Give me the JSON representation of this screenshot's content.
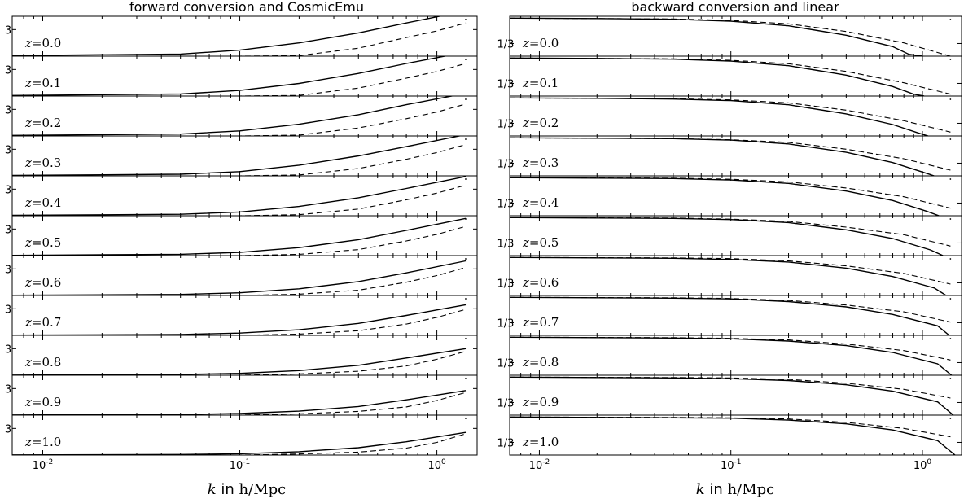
{
  "chart_data": [
    {
      "type": "line",
      "title": "forward conversion and CosmicEmu",
      "xlabel_italic": "k",
      "xlabel_mid": " in ",
      "xlabel_unit": "h/Mpc",
      "xscale": "log",
      "xlim": [
        0.007,
        1.6
      ],
      "xticks": [
        {
          "value": 0.01,
          "base": "10",
          "exp": "-2"
        },
        {
          "value": 0.1,
          "base": "10",
          "exp": "-1"
        },
        {
          "value": 1,
          "base": "10",
          "exp": "0"
        }
      ],
      "ytick_label": "3",
      "ylim": [
        1,
        4
      ],
      "ytick_value": 3,
      "grid": false,
      "panel_label_var": "z",
      "panels": [
        {
          "z_label": "=0.0",
          "ref_x": 1.4,
          "solid_x": [
            0.007,
            0.05,
            0.1,
            0.2,
            0.4,
            0.7,
            1.4
          ],
          "solid_y": [
            1.04,
            1.16,
            1.45,
            2.0,
            2.75,
            3.5,
            4.4
          ],
          "dashed_x": [
            0.007,
            0.1,
            0.2,
            0.4,
            0.7,
            1.0,
            1.4
          ],
          "dashed_y": [
            1.0,
            1.0,
            1.04,
            1.6,
            2.4,
            2.9,
            3.5
          ]
        },
        {
          "z_label": "=0.1",
          "ref_x": 1.4,
          "solid_x": [
            0.007,
            0.05,
            0.1,
            0.2,
            0.4,
            0.7,
            1.4
          ],
          "solid_y": [
            1.04,
            1.15,
            1.42,
            1.95,
            2.7,
            3.45,
            4.3
          ],
          "dashed_x": [
            0.007,
            0.1,
            0.2,
            0.4,
            0.7,
            1.0,
            1.4
          ],
          "dashed_y": [
            1.0,
            1.0,
            1.05,
            1.6,
            2.35,
            2.85,
            3.45
          ]
        },
        {
          "z_label": "=0.2",
          "ref_x": 1.4,
          "solid_x": [
            0.007,
            0.05,
            0.1,
            0.2,
            0.4,
            0.7,
            1.4
          ],
          "solid_y": [
            1.04,
            1.14,
            1.38,
            1.88,
            2.6,
            3.35,
            4.2
          ],
          "dashed_x": [
            0.007,
            0.1,
            0.2,
            0.4,
            0.7,
            1.0,
            1.4
          ],
          "dashed_y": [
            1.0,
            1.0,
            1.06,
            1.6,
            2.3,
            2.8,
            3.4
          ]
        },
        {
          "z_label": "=0.3",
          "ref_x": 1.4,
          "solid_x": [
            0.007,
            0.05,
            0.1,
            0.2,
            0.4,
            0.7,
            1.4
          ],
          "solid_y": [
            1.03,
            1.12,
            1.32,
            1.8,
            2.5,
            3.2,
            4.1
          ],
          "dashed_x": [
            0.007,
            0.1,
            0.2,
            0.4,
            0.7,
            1.0,
            1.4
          ],
          "dashed_y": [
            1.0,
            1.0,
            1.07,
            1.55,
            2.25,
            2.75,
            3.35
          ]
        },
        {
          "z_label": "=0.4",
          "ref_x": 1.4,
          "solid_x": [
            0.007,
            0.05,
            0.1,
            0.2,
            0.4,
            0.7,
            1.4
          ],
          "solid_y": [
            1.03,
            1.11,
            1.28,
            1.7,
            2.35,
            3.05,
            3.95
          ],
          "dashed_x": [
            0.007,
            0.1,
            0.2,
            0.4,
            0.7,
            1.0,
            1.4
          ],
          "dashed_y": [
            1.0,
            1.0,
            1.08,
            1.5,
            2.2,
            2.7,
            3.3
          ]
        },
        {
          "z_label": "=0.5",
          "ref_x": 1.4,
          "solid_x": [
            0.007,
            0.05,
            0.1,
            0.2,
            0.4,
            0.7,
            1.4
          ],
          "solid_y": [
            1.02,
            1.1,
            1.24,
            1.6,
            2.2,
            2.9,
            3.8
          ],
          "dashed_x": [
            0.007,
            0.1,
            0.2,
            0.4,
            0.7,
            1.0,
            1.4
          ],
          "dashed_y": [
            1.0,
            1.0,
            1.09,
            1.45,
            2.1,
            2.6,
            3.2
          ]
        },
        {
          "z_label": "=0.6",
          "ref_x": 1.4,
          "solid_x": [
            0.007,
            0.05,
            0.1,
            0.2,
            0.4,
            0.7,
            1.4
          ],
          "solid_y": [
            1.02,
            1.08,
            1.2,
            1.5,
            2.05,
            2.7,
            3.6
          ],
          "dashed_x": [
            0.007,
            0.1,
            0.2,
            0.4,
            0.7,
            1.0,
            1.4
          ],
          "dashed_y": [
            1.0,
            1.0,
            1.1,
            1.4,
            2.0,
            2.5,
            3.1
          ]
        },
        {
          "z_label": "=0.7",
          "ref_x": 1.4,
          "solid_x": [
            0.007,
            0.05,
            0.1,
            0.2,
            0.4,
            0.7,
            1.4
          ],
          "solid_y": [
            1.02,
            1.07,
            1.17,
            1.42,
            1.9,
            2.5,
            3.3
          ],
          "dashed_x": [
            0.007,
            0.1,
            0.2,
            0.4,
            0.7,
            1.0,
            1.4
          ],
          "dashed_y": [
            1.0,
            1.0,
            1.1,
            1.35,
            1.85,
            2.35,
            2.95
          ]
        },
        {
          "z_label": "=0.8",
          "ref_x": 1.4,
          "solid_x": [
            0.007,
            0.05,
            0.1,
            0.2,
            0.4,
            0.7,
            1.4
          ],
          "solid_y": [
            1.01,
            1.06,
            1.14,
            1.35,
            1.75,
            2.3,
            3.0
          ],
          "dashed_x": [
            0.007,
            0.1,
            0.2,
            0.4,
            0.7,
            1.0,
            1.4
          ],
          "dashed_y": [
            1.0,
            1.0,
            1.1,
            1.3,
            1.7,
            2.2,
            2.8
          ]
        },
        {
          "z_label": "=0.9",
          "ref_x": 1.4,
          "solid_x": [
            0.007,
            0.05,
            0.1,
            0.2,
            0.4,
            0.7,
            1.4
          ],
          "solid_y": [
            1.01,
            1.05,
            1.12,
            1.3,
            1.65,
            2.15,
            2.85
          ],
          "dashed_x": [
            0.007,
            0.1,
            0.2,
            0.4,
            0.7,
            1.0,
            1.4
          ],
          "dashed_y": [
            1.0,
            1.0,
            1.1,
            1.28,
            1.62,
            2.1,
            2.7
          ]
        },
        {
          "z_label": "=1.0",
          "ref_x": 1.4,
          "solid_x": [
            0.007,
            0.05,
            0.1,
            0.2,
            0.4,
            0.7,
            1.4
          ],
          "solid_y": [
            1.01,
            1.04,
            1.1,
            1.25,
            1.55,
            2.0,
            2.7
          ],
          "dashed_x": [
            0.007,
            0.1,
            0.2,
            0.4,
            0.7,
            1.0,
            1.4
          ],
          "dashed_y": [
            1.0,
            1.0,
            1.08,
            1.22,
            1.52,
            1.95,
            2.6
          ]
        }
      ]
    },
    {
      "type": "line",
      "title": "backward conversion and linear",
      "xlabel_italic": "k",
      "xlabel_mid": " in ",
      "xlabel_unit": "h/Mpc",
      "xscale": "log",
      "xlim": [
        0.007,
        1.6
      ],
      "xticks": [
        {
          "value": 0.01,
          "base": "10",
          "exp": "-2"
        },
        {
          "value": 0.1,
          "base": "10",
          "exp": "-1"
        },
        {
          "value": 1,
          "base": "10",
          "exp": "0"
        }
      ],
      "ytick_label": "1/3",
      "ylim": [
        0,
        1.05
      ],
      "ytick_value": 0.333,
      "grid": false,
      "panel_label_var": "z",
      "panels": [
        {
          "z_label": "=0.0",
          "ref_x": 1.4,
          "solid_x": [
            0.007,
            0.02,
            0.05,
            0.1,
            0.2,
            0.4,
            0.7,
            0.85,
            1.0
          ],
          "solid_y": [
            1.0,
            0.99,
            0.97,
            0.92,
            0.8,
            0.55,
            0.25,
            0.05,
            0.0
          ],
          "dashed_x": [
            0.007,
            0.05,
            0.1,
            0.2,
            0.4,
            0.8,
            1.4
          ],
          "dashed_y": [
            1.0,
            0.98,
            0.94,
            0.85,
            0.65,
            0.35,
            0.0
          ]
        },
        {
          "z_label": "=0.1",
          "ref_x": 1.4,
          "solid_x": [
            0.007,
            0.02,
            0.05,
            0.1,
            0.2,
            0.4,
            0.7,
            0.9,
            1.02
          ],
          "solid_y": [
            1.0,
            0.99,
            0.97,
            0.92,
            0.8,
            0.55,
            0.25,
            0.05,
            0.0
          ],
          "dashed_x": [
            0.007,
            0.05,
            0.1,
            0.2,
            0.4,
            0.8,
            1.4
          ],
          "dashed_y": [
            1.0,
            0.98,
            0.94,
            0.85,
            0.65,
            0.35,
            0.05
          ]
        },
        {
          "z_label": "=0.2",
          "ref_x": 1.4,
          "solid_x": [
            0.007,
            0.02,
            0.05,
            0.1,
            0.2,
            0.4,
            0.7,
            0.95,
            1.07
          ],
          "solid_y": [
            1.0,
            0.99,
            0.97,
            0.93,
            0.82,
            0.58,
            0.3,
            0.08,
            0.0
          ],
          "dashed_x": [
            0.007,
            0.05,
            0.1,
            0.2,
            0.4,
            0.8,
            1.4
          ],
          "dashed_y": [
            1.0,
            0.98,
            0.95,
            0.87,
            0.68,
            0.4,
            0.1
          ]
        },
        {
          "z_label": "=0.3",
          "ref_x": 1.4,
          "solid_x": [
            0.007,
            0.02,
            0.05,
            0.1,
            0.2,
            0.4,
            0.7,
            1.0,
            1.15
          ],
          "solid_y": [
            1.0,
            0.99,
            0.98,
            0.94,
            0.84,
            0.62,
            0.35,
            0.1,
            0.0
          ],
          "dashed_x": [
            0.007,
            0.05,
            0.1,
            0.2,
            0.4,
            0.8,
            1.4
          ],
          "dashed_y": [
            1.0,
            0.98,
            0.95,
            0.88,
            0.7,
            0.45,
            0.15
          ]
        },
        {
          "z_label": "=0.4",
          "ref_x": 1.4,
          "solid_x": [
            0.007,
            0.02,
            0.05,
            0.1,
            0.2,
            0.4,
            0.7,
            1.05,
            1.22
          ],
          "solid_y": [
            1.0,
            0.99,
            0.98,
            0.94,
            0.85,
            0.65,
            0.4,
            0.12,
            0.0
          ],
          "dashed_x": [
            0.007,
            0.05,
            0.1,
            0.2,
            0.4,
            0.8,
            1.4
          ],
          "dashed_y": [
            1.0,
            0.99,
            0.96,
            0.89,
            0.73,
            0.5,
            0.2
          ]
        },
        {
          "z_label": "=0.5",
          "ref_x": 1.4,
          "solid_x": [
            0.007,
            0.02,
            0.05,
            0.1,
            0.2,
            0.4,
            0.7,
            1.1,
            1.28
          ],
          "solid_y": [
            1.0,
            0.99,
            0.98,
            0.95,
            0.87,
            0.68,
            0.45,
            0.15,
            0.0
          ],
          "dashed_x": [
            0.007,
            0.05,
            0.1,
            0.2,
            0.4,
            0.8,
            1.4
          ],
          "dashed_y": [
            1.0,
            0.99,
            0.96,
            0.9,
            0.75,
            0.55,
            0.25
          ]
        },
        {
          "z_label": "=0.6",
          "ref_x": 1.4,
          "solid_x": [
            0.007,
            0.02,
            0.05,
            0.1,
            0.2,
            0.4,
            0.7,
            1.15,
            1.33
          ],
          "solid_y": [
            1.0,
            0.99,
            0.98,
            0.95,
            0.88,
            0.72,
            0.5,
            0.2,
            0.0
          ],
          "dashed_x": [
            0.007,
            0.05,
            0.1,
            0.2,
            0.4,
            0.8,
            1.4
          ],
          "dashed_y": [
            1.0,
            0.99,
            0.97,
            0.91,
            0.78,
            0.58,
            0.3
          ]
        },
        {
          "z_label": "=0.7",
          "ref_x": 1.4,
          "solid_x": [
            0.007,
            0.02,
            0.05,
            0.1,
            0.2,
            0.4,
            0.7,
            1.2,
            1.38
          ],
          "solid_y": [
            1.0,
            0.99,
            0.98,
            0.96,
            0.89,
            0.75,
            0.55,
            0.25,
            0.0
          ],
          "dashed_x": [
            0.007,
            0.05,
            0.1,
            0.2,
            0.4,
            0.8,
            1.4
          ],
          "dashed_y": [
            1.0,
            0.99,
            0.97,
            0.92,
            0.8,
            0.62,
            0.35
          ]
        },
        {
          "z_label": "=0.8",
          "ref_x": 1.4,
          "solid_x": [
            0.007,
            0.02,
            0.05,
            0.1,
            0.2,
            0.4,
            0.7,
            1.2,
            1.42
          ],
          "solid_y": [
            1.0,
            0.99,
            0.98,
            0.96,
            0.9,
            0.78,
            0.6,
            0.3,
            0.0
          ],
          "dashed_x": [
            0.007,
            0.05,
            0.1,
            0.2,
            0.4,
            0.8,
            1.4
          ],
          "dashed_y": [
            1.0,
            0.99,
            0.97,
            0.93,
            0.82,
            0.65,
            0.4
          ]
        },
        {
          "z_label": "=0.9",
          "ref_x": 1.4,
          "solid_x": [
            0.007,
            0.02,
            0.05,
            0.1,
            0.2,
            0.4,
            0.7,
            1.2,
            1.45
          ],
          "solid_y": [
            1.0,
            0.99,
            0.98,
            0.96,
            0.91,
            0.8,
            0.63,
            0.35,
            0.0
          ],
          "dashed_x": [
            0.007,
            0.05,
            0.1,
            0.2,
            0.4,
            0.8,
            1.4
          ],
          "dashed_y": [
            1.0,
            0.99,
            0.98,
            0.94,
            0.84,
            0.68,
            0.45
          ]
        },
        {
          "z_label": "=1.0",
          "ref_x": 1.4,
          "solid_x": [
            0.007,
            0.02,
            0.05,
            0.1,
            0.2,
            0.4,
            0.7,
            1.2,
            1.48
          ],
          "solid_y": [
            1.0,
            0.99,
            0.98,
            0.97,
            0.92,
            0.82,
            0.66,
            0.38,
            0.0
          ],
          "dashed_x": [
            0.007,
            0.05,
            0.1,
            0.2,
            0.4,
            0.8,
            1.4
          ],
          "dashed_y": [
            1.0,
            0.99,
            0.98,
            0.95,
            0.86,
            0.7,
            0.48
          ]
        }
      ]
    }
  ]
}
